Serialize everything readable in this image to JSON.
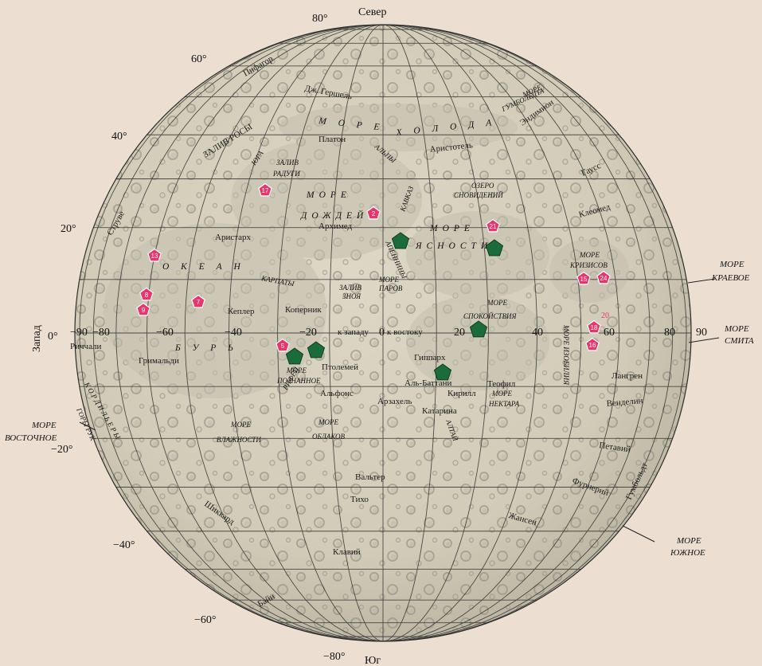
{
  "colors": {
    "background": "#ecdfd2",
    "globe": "#d7cfbb",
    "grid": "#2b2b2b",
    "landing_marker": "#e8356e",
    "station_marker": "#1c6b3a"
  },
  "compass": {
    "north": "Север",
    "south": "Юг",
    "west": "Запад"
  },
  "latitude_labels": [
    "80°",
    "60°",
    "40°",
    "20°",
    "0°",
    "−20°",
    "−40°",
    "−60°",
    "−80°"
  ],
  "longitude_labels": {
    "m90": "−90",
    "m80": "−80",
    "m60": "−60",
    "m40": "−40",
    "m20": "−20",
    "zero": "0",
    "west_dir": "к западу",
    "east_dir": "к востоку",
    "p20": "20",
    "p40": "40",
    "p60": "60",
    "p80": "80",
    "p90": "90"
  },
  "edge_seas": {
    "kraevoe": [
      "МОРЕ",
      "КРАЕВОЕ"
    ],
    "smita": [
      "МОРЕ",
      "СМИТА"
    ],
    "yuzhnoe": [
      "МОРЕ",
      "ЮЖНОЕ"
    ],
    "vostochnoe": [
      "МОРЕ",
      "ВОСТОЧНОЕ"
    ]
  },
  "seas": {
    "holoda": [
      "М О Р Е",
      "Х О Л О Д А"
    ],
    "dozhdey": [
      "МОРЕ",
      "ДОЖДЕЙ"
    ],
    "yasnosti": [
      "МОРЕ",
      "ЯСНОСТИ"
    ],
    "okean": [
      "О К Е А Н",
      "Б У Р Ь"
    ],
    "krizisov": [
      "МОРЕ",
      "КРИЗИСОВ"
    ],
    "spokoystviya": [
      "МОРЕ",
      "СПОКОЙСТВИЯ"
    ],
    "izobiliya": "МОРЕ ИЗОБИЛИЯ",
    "nektara": [
      "МОРЕ",
      "НЕКТАРА"
    ],
    "parov": [
      "МОРЕ",
      "ПАРОВ"
    ],
    "zaliv_znoya": [
      "ЗАЛИВ",
      "ЗНОЯ"
    ],
    "poznannoe": [
      "МОРЕ",
      "ПОЗНАННОЕ"
    ],
    "vlazhnosti": [
      "МОРЕ",
      "ВЛАЖНОСТИ"
    ],
    "oblakov": [
      "МОРЕ",
      "ОБЛАКОВ"
    ],
    "ozero_snovideniy": [
      "ОЗЕРО",
      "СНОВИДЕНИЙ"
    ],
    "gumboldta": [
      "МОРЕ",
      "ГУМБОЛЬДТА"
    ],
    "zaliv_rosy": "ЗАЛИВ РОСЫ",
    "zaliv_radugi": [
      "ЗАЛИВ",
      "РАДУГИ"
    ]
  },
  "mountains": {
    "yura": "ЮРА",
    "alpy": "АЛЬПЫ",
    "kavkaz": "КАВКАЗ",
    "apenniny": "АПЕННИНЫ",
    "karpaty": "КАРПАТЫ",
    "rifey": "РИФЕЙ",
    "altay": "АЛТАЙ",
    "kordilery": "К О Р Д И Л Ь Е Р Ы",
    "gory_ruk": "ГОРЫ РУК"
  },
  "craters": {
    "pifagor": "Пифагор",
    "gershel": "Дж. Гершель",
    "platon": "Платон",
    "aristotel": "Аристотель",
    "endimion": "Эндимион",
    "gauss": "Гаусс",
    "kleomed": "Клеомед",
    "struve": "Струве",
    "aristarh": "Аристарх",
    "arhimed": "Архимед",
    "kepler": "Кеплер",
    "kopernik": "Коперник",
    "richchali": "Риччали",
    "grimaldi": "Гримальди",
    "ptolemey": "Птолемей",
    "gipparh": "Гиппарх",
    "albattani": "Аль-Баттани",
    "alfons": "Альфонс",
    "arzahel": "Арзахель",
    "kirill": "Кирилл",
    "katarina": "Катарина",
    "teofil": "Теофил",
    "langren": "Лангрен",
    "vendelin": "Венделин",
    "petaviy": "Петавий",
    "gumboldt": "Гумбольдт",
    "furneriy": "Фурнерий",
    "valter": "Вальтер",
    "tiho": "Тихо",
    "zhansen": "Жансен",
    "shikkard": "Шиккард",
    "klaviy": "Клавий",
    "bayi": "Байи"
  },
  "landing_markers": [
    "2",
    "5",
    "7",
    "8",
    "9",
    "13",
    "15",
    "16",
    "17",
    "18",
    "20",
    "21",
    "24"
  ]
}
